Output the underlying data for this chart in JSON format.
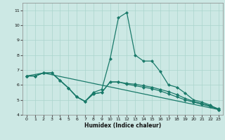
{
  "bg_color": "#cce8e4",
  "grid_color": "#aad4cc",
  "line_color": "#1a7a6a",
  "xlabel": "Humidex (Indice chaleur)",
  "ylim": [
    4,
    11.5
  ],
  "xlim": [
    -0.5,
    23.5
  ],
  "yticks": [
    4,
    5,
    6,
    7,
    8,
    9,
    10,
    11
  ],
  "xticks": [
    0,
    1,
    2,
    3,
    4,
    5,
    6,
    7,
    8,
    9,
    10,
    11,
    12,
    13,
    14,
    15,
    16,
    17,
    18,
    19,
    20,
    21,
    22,
    23
  ],
  "series_main_x": [
    0,
    1,
    2,
    3,
    4,
    5,
    6,
    7,
    8,
    9,
    10,
    11,
    12,
    13,
    14,
    15,
    16,
    17,
    18,
    19,
    20,
    21,
    22,
    23
  ],
  "series_main_y": [
    6.6,
    6.6,
    6.8,
    6.8,
    6.3,
    5.8,
    5.2,
    4.9,
    5.5,
    5.7,
    7.75,
    10.5,
    10.85,
    8.0,
    7.6,
    7.6,
    6.9,
    6.0,
    5.85,
    5.45,
    5.0,
    4.85,
    4.65,
    4.35
  ],
  "series_low_x": [
    0,
    1,
    2,
    3,
    4,
    5,
    6,
    7,
    8,
    9,
    10,
    11,
    12,
    13,
    14,
    15,
    16,
    17,
    18,
    19,
    20,
    21,
    22,
    23
  ],
  "series_low_y": [
    6.6,
    6.6,
    6.8,
    6.8,
    6.3,
    5.8,
    5.2,
    4.9,
    5.4,
    5.5,
    6.2,
    6.2,
    6.1,
    6.05,
    5.95,
    5.85,
    5.7,
    5.55,
    5.35,
    5.1,
    4.9,
    4.75,
    4.6,
    4.4
  ],
  "series_mid_x": [
    0,
    1,
    2,
    3,
    4,
    5,
    6,
    7,
    8,
    9,
    10,
    11,
    12,
    13,
    14,
    15,
    16,
    17,
    18,
    19,
    20,
    21,
    22,
    23
  ],
  "series_mid_y": [
    6.6,
    6.6,
    6.8,
    6.8,
    6.3,
    5.8,
    5.2,
    4.9,
    5.4,
    5.5,
    6.2,
    6.2,
    6.05,
    5.95,
    5.85,
    5.75,
    5.6,
    5.4,
    5.2,
    5.0,
    4.85,
    4.7,
    4.55,
    4.35
  ],
  "series_line_x": [
    0,
    2,
    23
  ],
  "series_line_y": [
    6.6,
    6.8,
    4.35
  ],
  "markersize": 2.5,
  "linewidth": 0.9
}
